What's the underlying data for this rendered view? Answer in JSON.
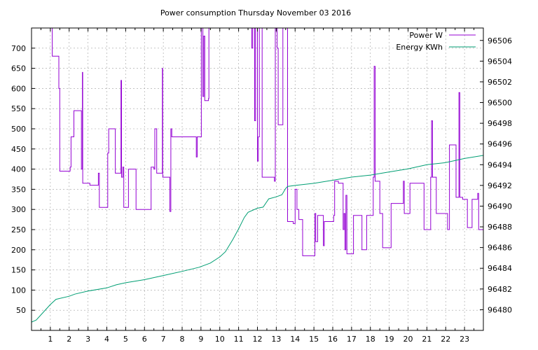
{
  "chart_data": {
    "type": "line",
    "title": "Power consumption Thursday November 03 2016",
    "xlabel": "",
    "ylabel": "",
    "xlim": [
      0,
      24
    ],
    "ylim": [
      0,
      750
    ],
    "y2lim": [
      96478,
      96507.2
    ],
    "grid": true,
    "legend_position": "top-right",
    "xticks": [
      1,
      2,
      3,
      4,
      5,
      6,
      7,
      8,
      9,
      10,
      11,
      12,
      13,
      14,
      15,
      16,
      17,
      18,
      19,
      20,
      21,
      22,
      23
    ],
    "yticks": [
      50,
      100,
      150,
      200,
      250,
      300,
      350,
      400,
      450,
      500,
      550,
      600,
      650,
      700
    ],
    "y2ticks": [
      96480,
      96482,
      96484,
      96486,
      96488,
      96490,
      96492,
      96494,
      96496,
      96498,
      96500,
      96502,
      96504,
      96506
    ],
    "series": [
      {
        "name": "Power W",
        "axis": "y1",
        "color": "#9400d3",
        "step": true,
        "points": [
          [
            0.95,
            750
          ],
          [
            1.1,
            680
          ],
          [
            1.4,
            680
          ],
          [
            1.45,
            600
          ],
          [
            1.5,
            395
          ],
          [
            2.0,
            395
          ],
          [
            2.05,
            405
          ],
          [
            2.1,
            480
          ],
          [
            2.2,
            480
          ],
          [
            2.25,
            545
          ],
          [
            2.4,
            545
          ],
          [
            2.6,
            545
          ],
          [
            2.65,
            400
          ],
          [
            2.7,
            640
          ],
          [
            2.72,
            365
          ],
          [
            3.0,
            365
          ],
          [
            3.1,
            360
          ],
          [
            3.5,
            360
          ],
          [
            3.55,
            390
          ],
          [
            3.6,
            305
          ],
          [
            4.0,
            305
          ],
          [
            4.05,
            440
          ],
          [
            4.1,
            500
          ],
          [
            4.4,
            500
          ],
          [
            4.45,
            390
          ],
          [
            4.7,
            390
          ],
          [
            4.75,
            620
          ],
          [
            4.78,
            380
          ],
          [
            4.85,
            405
          ],
          [
            4.9,
            305
          ],
          [
            5.1,
            305
          ],
          [
            5.15,
            400
          ],
          [
            5.5,
            400
          ],
          [
            5.55,
            300
          ],
          [
            6.3,
            300
          ],
          [
            6.35,
            405
          ],
          [
            6.5,
            400
          ],
          [
            6.55,
            500
          ],
          [
            6.6,
            500
          ],
          [
            6.65,
            390
          ],
          [
            6.9,
            390
          ],
          [
            6.95,
            650
          ],
          [
            6.97,
            380
          ],
          [
            7.3,
            380
          ],
          [
            7.35,
            295
          ],
          [
            7.4,
            500
          ],
          [
            7.45,
            480
          ],
          [
            8.7,
            480
          ],
          [
            8.75,
            430
          ],
          [
            8.8,
            480
          ],
          [
            9.0,
            480
          ],
          [
            9.02,
            750
          ],
          [
            9.1,
            580
          ],
          [
            9.15,
            730
          ],
          [
            9.2,
            570
          ],
          [
            9.4,
            575
          ],
          [
            9.42,
            750
          ],
          [
            9.45,
            750
          ],
          [
            11.65,
            750
          ],
          [
            11.7,
            700
          ],
          [
            11.75,
            750
          ],
          [
            11.85,
            520
          ],
          [
            11.9,
            750
          ],
          [
            11.95,
            750
          ],
          [
            12.0,
            420
          ],
          [
            12.05,
            480
          ],
          [
            12.1,
            750
          ],
          [
            12.15,
            750
          ],
          [
            12.25,
            380
          ],
          [
            12.5,
            380
          ],
          [
            12.9,
            370
          ],
          [
            12.95,
            750
          ],
          [
            13.05,
            700
          ],
          [
            13.1,
            510
          ],
          [
            13.3,
            510
          ],
          [
            13.35,
            750
          ],
          [
            13.5,
            750
          ],
          [
            13.6,
            270
          ],
          [
            13.9,
            265
          ],
          [
            14.0,
            350
          ],
          [
            14.1,
            300
          ],
          [
            14.2,
            275
          ],
          [
            14.3,
            275
          ],
          [
            14.4,
            185
          ],
          [
            15.0,
            185
          ],
          [
            15.05,
            290
          ],
          [
            15.1,
            220
          ],
          [
            15.2,
            285
          ],
          [
            15.45,
            285
          ],
          [
            15.5,
            210
          ],
          [
            15.55,
            270
          ],
          [
            16.0,
            270
          ],
          [
            16.05,
            285
          ],
          [
            16.1,
            370
          ],
          [
            16.3,
            365
          ],
          [
            16.5,
            365
          ],
          [
            16.55,
            250
          ],
          [
            16.6,
            290
          ],
          [
            16.65,
            200
          ],
          [
            16.7,
            335
          ],
          [
            16.75,
            190
          ],
          [
            17.0,
            190
          ],
          [
            17.1,
            285
          ],
          [
            17.5,
            285
          ],
          [
            17.55,
            200
          ],
          [
            17.75,
            200
          ],
          [
            17.8,
            285
          ],
          [
            18.1,
            285
          ],
          [
            18.15,
            380
          ],
          [
            18.2,
            655
          ],
          [
            18.25,
            370
          ],
          [
            18.4,
            370
          ],
          [
            18.5,
            290
          ],
          [
            18.6,
            290
          ],
          [
            18.65,
            205
          ],
          [
            19.0,
            205
          ],
          [
            19.1,
            315
          ],
          [
            19.7,
            315
          ],
          [
            19.75,
            370
          ],
          [
            19.8,
            290
          ],
          [
            20.0,
            290
          ],
          [
            20.1,
            365
          ],
          [
            20.8,
            365
          ],
          [
            20.85,
            250
          ],
          [
            21.1,
            250
          ],
          [
            21.2,
            380
          ],
          [
            21.25,
            520
          ],
          [
            21.3,
            380
          ],
          [
            21.45,
            380
          ],
          [
            21.5,
            290
          ],
          [
            21.7,
            290
          ],
          [
            22.0,
            290
          ],
          [
            22.1,
            250
          ],
          [
            22.2,
            460
          ],
          [
            22.5,
            460
          ],
          [
            22.55,
            330
          ],
          [
            22.6,
            330
          ],
          [
            22.7,
            590
          ],
          [
            22.75,
            330
          ],
          [
            22.9,
            325
          ],
          [
            23.1,
            325
          ],
          [
            23.15,
            255
          ],
          [
            23.3,
            255
          ],
          [
            23.4,
            325
          ],
          [
            23.6,
            325
          ],
          [
            23.7,
            340
          ],
          [
            23.75,
            250
          ],
          [
            24.0,
            250
          ]
        ]
      },
      {
        "name": "Energy KWh",
        "axis": "y2",
        "color": "#009e73",
        "step": false,
        "points": [
          [
            0.0,
            96478.8
          ],
          [
            0.25,
            96479.0
          ],
          [
            1.0,
            96480.5
          ],
          [
            1.3,
            96481.0
          ],
          [
            2.0,
            96481.3
          ],
          [
            2.3,
            96481.5
          ],
          [
            3.0,
            96481.8
          ],
          [
            4.0,
            96482.1
          ],
          [
            4.5,
            96482.4
          ],
          [
            5.0,
            96482.6
          ],
          [
            6.0,
            96482.9
          ],
          [
            7.0,
            96483.3
          ],
          [
            8.0,
            96483.7
          ],
          [
            8.9,
            96484.1
          ],
          [
            9.5,
            96484.5
          ],
          [
            10.0,
            96485.1
          ],
          [
            10.3,
            96485.6
          ],
          [
            10.7,
            96486.8
          ],
          [
            11.0,
            96487.8
          ],
          [
            11.3,
            96488.9
          ],
          [
            11.5,
            96489.4
          ],
          [
            12.0,
            96489.8
          ],
          [
            12.3,
            96489.9
          ],
          [
            12.6,
            96490.7
          ],
          [
            13.0,
            96490.9
          ],
          [
            13.3,
            96491.1
          ],
          [
            13.5,
            96491.7
          ],
          [
            13.6,
            96491.9
          ],
          [
            14.0,
            96492.0
          ],
          [
            15.0,
            96492.2
          ],
          [
            16.0,
            96492.5
          ],
          [
            17.0,
            96492.8
          ],
          [
            18.0,
            96493.0
          ],
          [
            19.0,
            96493.3
          ],
          [
            20.0,
            96493.6
          ],
          [
            21.0,
            96494.0
          ],
          [
            22.0,
            96494.2
          ],
          [
            23.0,
            96494.6
          ],
          [
            24.0,
            96494.9
          ]
        ]
      }
    ]
  }
}
